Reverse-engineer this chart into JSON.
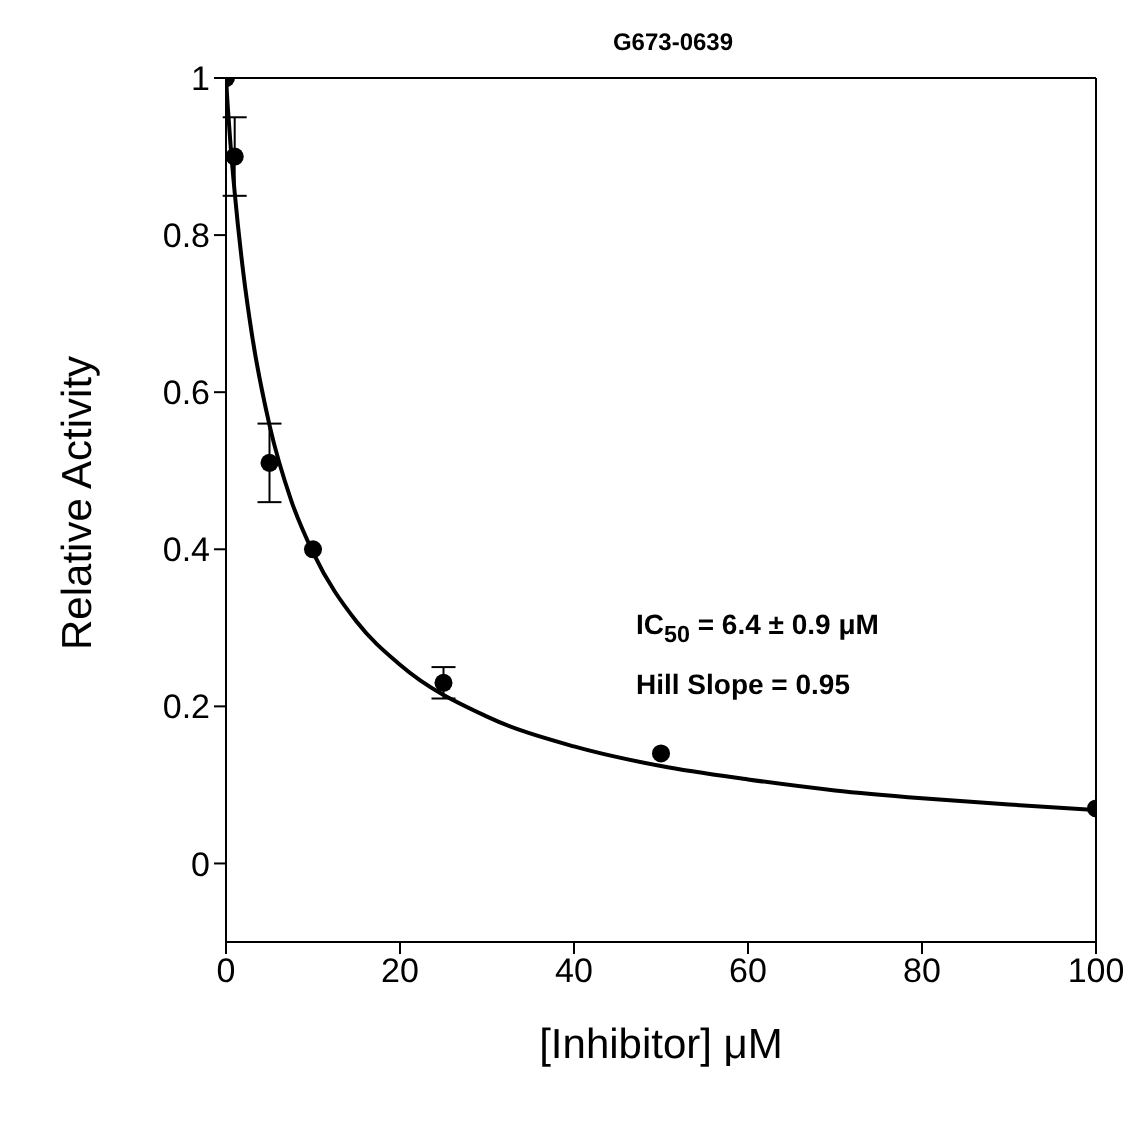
{
  "chart_data": {
    "type": "scatter",
    "title": "G673-0639",
    "xlabel": "[Inhibitor] μM",
    "ylabel": "Relative Activity",
    "xlim": [
      0,
      100
    ],
    "xticks": [
      0,
      20,
      40,
      60,
      80,
      100
    ],
    "ylim": [
      -0.1,
      1
    ],
    "yticks": [
      0,
      0.2,
      0.4,
      0.6,
      0.8,
      1
    ],
    "annotations": [
      "IC$_{50}$ = 6.4 ± 0.9 μM",
      "Hill Slope = 0.95"
    ],
    "series": [
      {
        "marker": "circle",
        "color": "#000000",
        "x": [
          0,
          1,
          5,
          10,
          25,
          50,
          100
        ],
        "values": [
          1,
          0.9,
          0.51,
          0.4,
          0.23,
          0.14,
          0.07
        ],
        "errors": [
          null,
          0.05,
          0.05,
          null,
          0.02,
          null,
          null
        ]
      },
      {
        "type": "line",
        "color": "#000000",
        "line_style": "solid",
        "x": [
          0,
          0.2,
          0.5,
          1,
          2,
          3,
          5,
          7.5,
          10,
          15,
          20,
          30,
          40,
          50,
          60,
          70,
          80,
          90,
          100
        ],
        "values": [
          1,
          0.964,
          0.918,
          0.854,
          0.751,
          0.672,
          0.558,
          0.462,
          0.396,
          0.308,
          0.253,
          0.187,
          0.149,
          0.124,
          0.107,
          0.093,
          0.083,
          0.075,
          0.068
        ]
      }
    ]
  }
}
